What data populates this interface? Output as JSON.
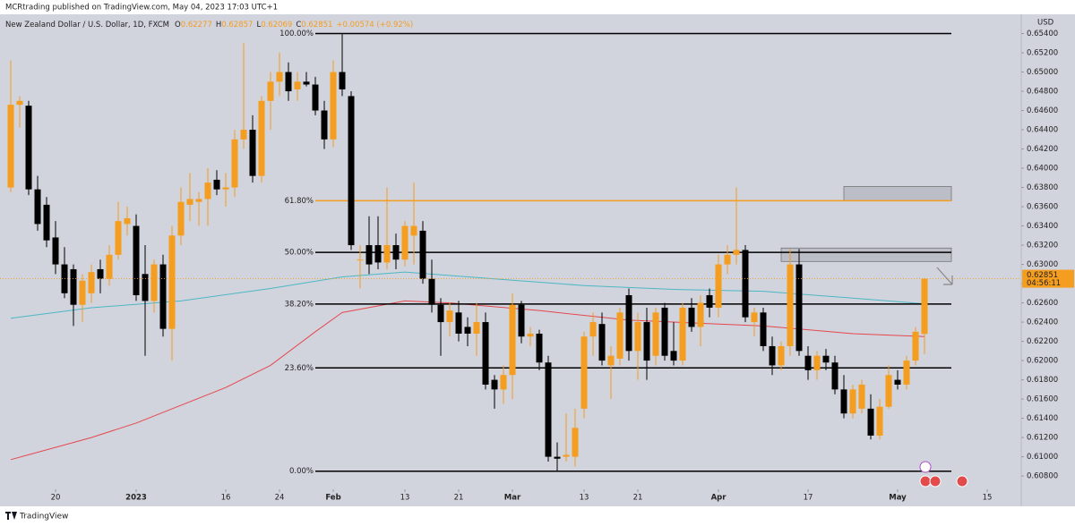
{
  "header": "MCRtrading published on TradingView.com, May 04, 2023 17:03 UTC+1",
  "footer": "TradingView",
  "chart_data": {
    "type": "candlestick",
    "title": "New Zealand Dollar / U.S. Dollar, 1D, FXCM",
    "ohlc_labels": [
      "O",
      "H",
      "L",
      "C"
    ],
    "ohlc": [
      0.62277,
      0.62857,
      0.62069,
      0.62851
    ],
    "change": "+0.00574 (+0.92%)",
    "currency": "USD",
    "countdown": "04:56:11",
    "up_color": "#f59d1f",
    "down_color": "#000000",
    "candles": [
      [
        0.638,
        0.6512,
        0.6375,
        0.6466
      ],
      [
        0.6466,
        0.6475,
        0.6442,
        0.647
      ],
      [
        0.6465,
        0.647,
        0.6372,
        0.6378
      ],
      [
        0.6378,
        0.6392,
        0.6335,
        0.6342
      ],
      [
        0.6362,
        0.637,
        0.6318,
        0.6325
      ],
      [
        0.6328,
        0.6345,
        0.629,
        0.63
      ],
      [
        0.63,
        0.6318,
        0.6265,
        0.627
      ],
      [
        0.6295,
        0.63,
        0.6236,
        0.6258
      ],
      [
        0.6258,
        0.629,
        0.624,
        0.6283
      ],
      [
        0.627,
        0.63,
        0.626,
        0.6292
      ],
      [
        0.6295,
        0.6305,
        0.627,
        0.6285
      ],
      [
        0.6285,
        0.632,
        0.6278,
        0.631
      ],
      [
        0.631,
        0.6365,
        0.6305,
        0.6345
      ],
      [
        0.6342,
        0.636,
        0.633,
        0.6348
      ],
      [
        0.634,
        0.6352,
        0.6262,
        0.6268
      ],
      [
        0.629,
        0.632,
        0.6205,
        0.6262
      ],
      [
        0.6262,
        0.6305,
        0.625,
        0.63
      ],
      [
        0.63,
        0.631,
        0.6225,
        0.6233
      ],
      [
        0.6233,
        0.634,
        0.62,
        0.633
      ],
      [
        0.633,
        0.638,
        0.632,
        0.6365
      ],
      [
        0.6362,
        0.6395,
        0.6345,
        0.6368
      ],
      [
        0.6365,
        0.6375,
        0.634,
        0.6368
      ],
      [
        0.6368,
        0.64,
        0.634,
        0.6385
      ],
      [
        0.6388,
        0.6398,
        0.6372,
        0.6378
      ],
      [
        0.6378,
        0.6395,
        0.636,
        0.638
      ],
      [
        0.638,
        0.644,
        0.637,
        0.643
      ],
      [
        0.643,
        0.653,
        0.642,
        0.644
      ],
      [
        0.644,
        0.6455,
        0.6385,
        0.6392
      ],
      [
        0.6392,
        0.6475,
        0.6385,
        0.647
      ],
      [
        0.647,
        0.65,
        0.644,
        0.649
      ],
      [
        0.649,
        0.652,
        0.6475,
        0.65
      ],
      [
        0.65,
        0.651,
        0.647,
        0.648
      ],
      [
        0.6482,
        0.65,
        0.647,
        0.649
      ],
      [
        0.649,
        0.65,
        0.6485,
        0.6487
      ],
      [
        0.6487,
        0.6495,
        0.6455,
        0.646
      ],
      [
        0.646,
        0.647,
        0.642,
        0.643
      ],
      [
        0.643,
        0.6512,
        0.6422,
        0.65
      ],
      [
        0.65,
        0.654,
        0.6475,
        0.6482
      ],
      [
        0.6475,
        0.648,
        0.6315,
        0.632
      ],
      [
        0.6305,
        0.632,
        0.6275,
        0.6305
      ],
      [
        0.632,
        0.635,
        0.629,
        0.63
      ],
      [
        0.632,
        0.635,
        0.6295,
        0.6302
      ],
      [
        0.6302,
        0.638,
        0.6295,
        0.632
      ],
      [
        0.632,
        0.6332,
        0.6295,
        0.6305
      ],
      [
        0.6305,
        0.6345,
        0.6298,
        0.634
      ],
      [
        0.633,
        0.6385,
        0.63,
        0.634
      ],
      [
        0.6335,
        0.6345,
        0.628,
        0.6285
      ],
      [
        0.6285,
        0.6305,
        0.625,
        0.6258
      ],
      [
        0.6258,
        0.6265,
        0.6205,
        0.624
      ],
      [
        0.624,
        0.626,
        0.6225,
        0.6252
      ],
      [
        0.625,
        0.6262,
        0.622,
        0.6228
      ],
      [
        0.6235,
        0.6245,
        0.6215,
        0.6228
      ],
      [
        0.6228,
        0.626,
        0.6205,
        0.624
      ],
      [
        0.624,
        0.625,
        0.617,
        0.6175
      ],
      [
        0.618,
        0.6185,
        0.615,
        0.617
      ],
      [
        0.617,
        0.6195,
        0.6155,
        0.6185
      ],
      [
        0.6185,
        0.627,
        0.616,
        0.6258
      ],
      [
        0.6258,
        0.6262,
        0.6218,
        0.6225
      ],
      [
        0.6225,
        0.6235,
        0.6215,
        0.6228
      ],
      [
        0.6228,
        0.6232,
        0.619,
        0.6198
      ],
      [
        0.6198,
        0.6205,
        0.6095,
        0.61
      ],
      [
        0.61,
        0.6115,
        0.6085,
        0.6098
      ],
      [
        0.61,
        0.6145,
        0.6095,
        0.6102
      ],
      [
        0.61,
        0.615,
        0.609,
        0.613
      ],
      [
        0.615,
        0.623,
        0.614,
        0.6225
      ],
      [
        0.6225,
        0.625,
        0.6205,
        0.624
      ],
      [
        0.6238,
        0.625,
        0.6195,
        0.62
      ],
      [
        0.6195,
        0.6215,
        0.616,
        0.6205
      ],
      [
        0.6202,
        0.6255,
        0.6195,
        0.625
      ],
      [
        0.6268,
        0.6275,
        0.62,
        0.621
      ],
      [
        0.621,
        0.625,
        0.618,
        0.624
      ],
      [
        0.624,
        0.6255,
        0.618,
        0.62
      ],
      [
        0.6205,
        0.6255,
        0.6195,
        0.625
      ],
      [
        0.6255,
        0.626,
        0.62,
        0.6205
      ],
      [
        0.621,
        0.624,
        0.6195,
        0.62
      ],
      [
        0.62,
        0.626,
        0.6195,
        0.6255
      ],
      [
        0.6255,
        0.6265,
        0.623,
        0.6235
      ],
      [
        0.6235,
        0.6268,
        0.6215,
        0.626
      ],
      [
        0.6268,
        0.6275,
        0.6245,
        0.6255
      ],
      [
        0.6255,
        0.631,
        0.6245,
        0.63
      ],
      [
        0.63,
        0.632,
        0.629,
        0.631
      ],
      [
        0.631,
        0.638,
        0.63,
        0.6315
      ],
      [
        0.6315,
        0.632,
        0.624,
        0.6245
      ],
      [
        0.624,
        0.6255,
        0.6225,
        0.625
      ],
      [
        0.625,
        0.6255,
        0.621,
        0.6215
      ],
      [
        0.6215,
        0.6225,
        0.6185,
        0.6195
      ],
      [
        0.6195,
        0.622,
        0.619,
        0.6215
      ],
      [
        0.6215,
        0.6316,
        0.6205,
        0.63
      ],
      [
        0.63,
        0.6316,
        0.6205,
        0.621
      ],
      [
        0.6205,
        0.6215,
        0.618,
        0.619
      ],
      [
        0.619,
        0.621,
        0.618,
        0.6205
      ],
      [
        0.6205,
        0.6212,
        0.619,
        0.6198
      ],
      [
        0.6198,
        0.6205,
        0.6165,
        0.617
      ],
      [
        0.617,
        0.6185,
        0.614,
        0.6145
      ],
      [
        0.6145,
        0.6175,
        0.614,
        0.617
      ],
      [
        0.615,
        0.618,
        0.6145,
        0.6175
      ],
      [
        0.615,
        0.6165,
        0.6118,
        0.6122
      ],
      [
        0.6122,
        0.616,
        0.6118,
        0.6152
      ],
      [
        0.6152,
        0.6195,
        0.615,
        0.6185
      ],
      [
        0.618,
        0.619,
        0.617,
        0.6175
      ],
      [
        0.6175,
        0.6205,
        0.617,
        0.62
      ],
      [
        0.62,
        0.6235,
        0.6195,
        0.623
      ],
      [
        0.62277,
        0.62857,
        0.62069,
        0.62851
      ]
    ],
    "moving_averages": [
      {
        "color": "#4cb8c4",
        "x": [
          0,
          9,
          19,
          29,
          37,
          44,
          54,
          64,
          74,
          84,
          94,
          102
        ],
        "values": [
          0.6244,
          0.6255,
          0.6262,
          0.6275,
          0.6287,
          0.6292,
          0.6285,
          0.6278,
          0.6274,
          0.6272,
          0.6265,
          0.6259
        ]
      },
      {
        "color": "#e5484d",
        "x": [
          0,
          9,
          14,
          24,
          29,
          34,
          37,
          44,
          49,
          59,
          69,
          79,
          84,
          94,
          102
        ],
        "values": [
          0.6097,
          0.612,
          0.6135,
          0.6172,
          0.6195,
          0.623,
          0.625,
          0.6262,
          0.626,
          0.6252,
          0.6242,
          0.6238,
          0.6236,
          0.6228,
          0.6225
        ]
      }
    ],
    "fib_start": 34,
    "fib_end": 105,
    "fib_levels": [
      {
        "label": "100.00%",
        "value": 0.654,
        "color": "#000000"
      },
      {
        "label": "61.80%",
        "value": 0.63662,
        "color": "#f59d1f"
      },
      {
        "label": "50.00%",
        "value": 0.63125,
        "color": "#000000"
      },
      {
        "label": "38.20%",
        "value": 0.62588,
        "color": "#000000"
      },
      {
        "label": "23.60%",
        "value": 0.61924,
        "color": "#000000"
      },
      {
        "label": "0.00%",
        "value": 0.6085,
        "color": "#000000"
      }
    ],
    "zones": [
      {
        "from": 0.6366,
        "to": 0.6381,
        "start": 93,
        "end": 105
      },
      {
        "from": 0.6303,
        "to": 0.6317,
        "start": 86,
        "end": 105
      }
    ],
    "xlim": [
      -1.2,
      112.8
    ],
    "ylim": [
      0.6068,
      0.6547
    ],
    "yticks": [
      {
        "value": 0.654,
        "label": "0.65400"
      },
      {
        "value": 0.652,
        "label": "0.65200"
      },
      {
        "value": 0.65,
        "label": "0.65000"
      },
      {
        "value": 0.648,
        "label": "0.64800"
      },
      {
        "value": 0.646,
        "label": "0.64600"
      },
      {
        "value": 0.644,
        "label": "0.64400"
      },
      {
        "value": 0.642,
        "label": "0.64200"
      },
      {
        "value": 0.64,
        "label": "0.64000"
      },
      {
        "value": 0.638,
        "label": "0.63800"
      },
      {
        "value": 0.636,
        "label": "0.63600"
      },
      {
        "value": 0.634,
        "label": "0.63400"
      },
      {
        "value": 0.632,
        "label": "0.63200"
      },
      {
        "value": 0.63,
        "label": "0.63000"
      },
      {
        "value": 0.628,
        "label": "0.62800"
      },
      {
        "value": 0.626,
        "label": "0.62600"
      },
      {
        "value": 0.624,
        "label": "0.62400"
      },
      {
        "value": 0.622,
        "label": "0.62200"
      },
      {
        "value": 0.62,
        "label": "0.62000"
      },
      {
        "value": 0.618,
        "label": "0.61800"
      },
      {
        "value": 0.616,
        "label": "0.61600"
      },
      {
        "value": 0.614,
        "label": "0.61400"
      },
      {
        "value": 0.612,
        "label": "0.61200"
      },
      {
        "value": 0.61,
        "label": "0.61000"
      },
      {
        "value": 0.608,
        "label": "0.60800"
      }
    ],
    "xticks": [
      {
        "value": 5,
        "label": "20"
      },
      {
        "value": 14,
        "label": "2023"
      },
      {
        "value": 24,
        "label": "16"
      },
      {
        "value": 30,
        "label": "24"
      },
      {
        "value": 36,
        "label": "Feb"
      },
      {
        "value": 44,
        "label": "13"
      },
      {
        "value": 50,
        "label": "21"
      },
      {
        "value": 56,
        "label": "Mar"
      },
      {
        "value": 64,
        "label": "13"
      },
      {
        "value": 70,
        "label": "21"
      },
      {
        "value": 79,
        "label": "Apr"
      },
      {
        "value": 89,
        "label": "17"
      },
      {
        "value": 99,
        "label": "May"
      },
      {
        "value": 109,
        "label": "15"
      }
    ]
  }
}
